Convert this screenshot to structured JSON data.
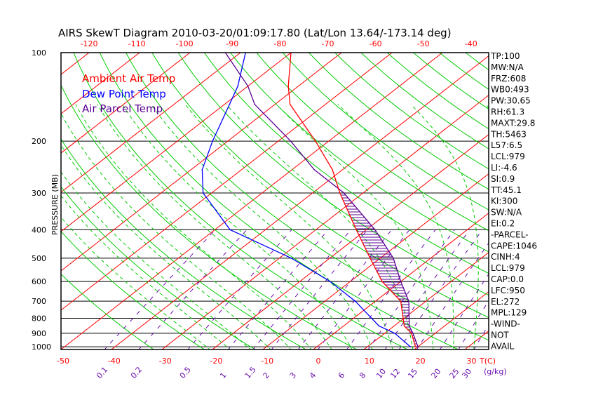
{
  "chart_data": {
    "type": "line",
    "title": "AIRS SkewT Diagram 2010-03-20/01:09:17.80 (Lat/Lon 13.64/-173.14 deg)",
    "ylabel": "PRESSURE (MB)",
    "xlabel": "T(C)",
    "mixing_ratio_label": "(g/kg)",
    "pressure_ticks": [
      100,
      200,
      300,
      400,
      500,
      600,
      700,
      800,
      900,
      1000
    ],
    "bottom_temp_ticks": [
      -50,
      -40,
      -30,
      -20,
      -10,
      0,
      10,
      20,
      30
    ],
    "top_temp_ticks": [
      -120,
      -110,
      -100,
      -90,
      -80,
      -70,
      -60,
      -50,
      -40
    ],
    "mixing_ratio_ticks": [
      0.1,
      0.2,
      0.5,
      1,
      1.5,
      2,
      3,
      4,
      6,
      8,
      10,
      12,
      15,
      20,
      25,
      30
    ],
    "legend": [
      {
        "name": "Ambient Air Temp",
        "color": "#ff0000"
      },
      {
        "name": "Dew Point Temp",
        "color": "#0000ff"
      },
      {
        "name": "Air Parcel Temp",
        "color": "#5a0090"
      }
    ],
    "pressure": [
      1000,
      900,
      850,
      700,
      600,
      500,
      400,
      300,
      250,
      200,
      150,
      130,
      100
    ],
    "series": [
      {
        "name": "Ambient Air Temp",
        "values": [
          19.5,
          15.3,
          12,
          5,
          -3.7,
          -12,
          -22,
          -34.6,
          -42,
          -52.6,
          -67,
          -72,
          -80
        ]
      },
      {
        "name": "Dew Point Temp",
        "values": [
          18.5,
          12,
          7,
          -4,
          -14,
          -27.6,
          -47,
          -61.7,
          -67.8,
          -73,
          -79,
          -82,
          -89
        ]
      },
      {
        "name": "Air Parcel Temp",
        "values": [
          20,
          15.6,
          13,
          6.6,
          0,
          -7.4,
          -18.3,
          -33.8,
          -45.6,
          -57.5,
          -74,
          -80,
          -93
        ]
      }
    ]
  },
  "indices": [
    "TP:100",
    "MW:N/A",
    "FRZ:608",
    "WB0:493",
    "PW:30.65",
    "RH:61.3",
    "MAXT:29.8",
    "TH:5463",
    "L57:6.5",
    "LCL:979",
    "LI:-4.6",
    "SI:0.9",
    "TT:45.1",
    "KI:300",
    "SW:N/A",
    "EI:0.2",
    "-PARCEL-",
    "CAPE:1046",
    "CINH:4",
    "LCL:979",
    "CAP:0.0",
    "LFC:950",
    "EL:272",
    "MPL:129",
    "-WIND-",
    "NOT",
    "AVAIL"
  ],
  "colors": {
    "temp": "#ff0000",
    "dew": "#0000ff",
    "parcel": "#5a0090",
    "adiabat": "#00cc00",
    "mixing": "#6a0dad"
  }
}
